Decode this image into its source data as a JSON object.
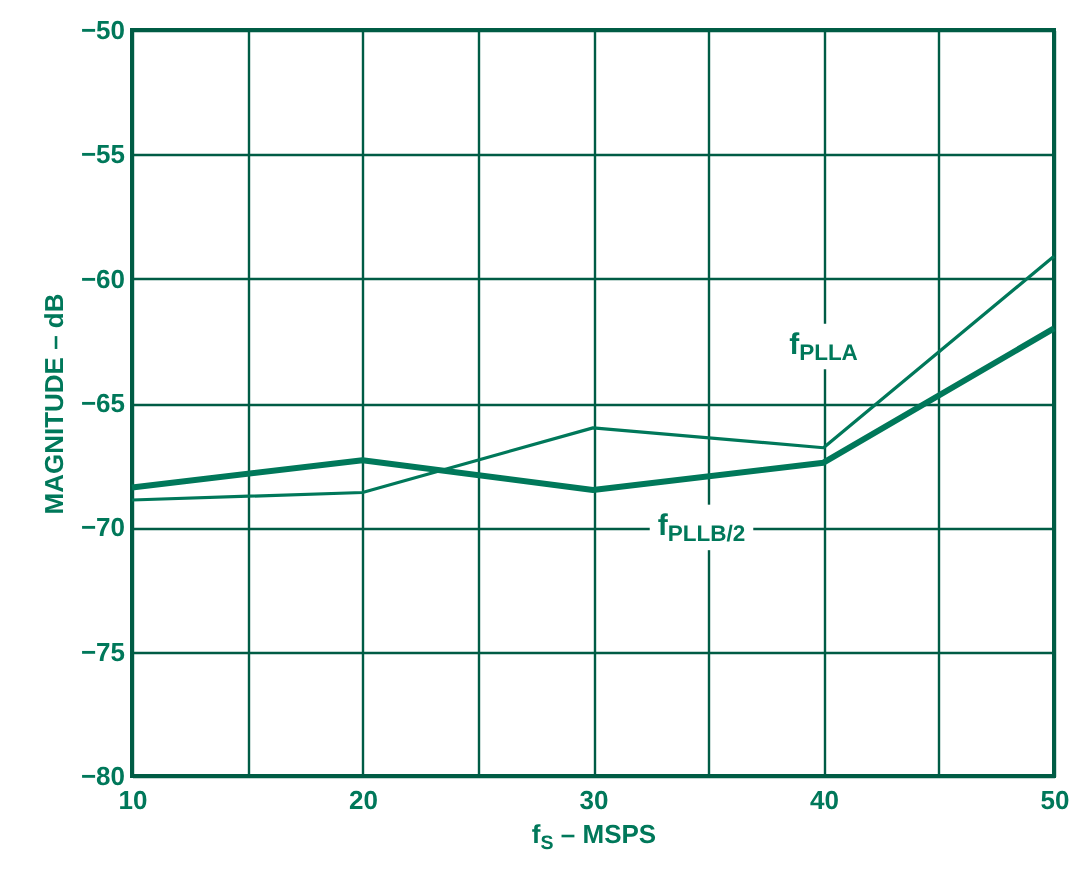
{
  "chart_data": {
    "type": "line",
    "xlabel": "f$_{S}$ – MSPS",
    "ylabel": "MAGNITUDE – dB",
    "x": [
      10,
      20,
      30,
      40,
      50
    ],
    "series": [
      {
        "name": "f$_{PLLA}$",
        "color": "#00785a",
        "values": [
          -68.9,
          -68.6,
          -66.0,
          -66.8,
          -59.1
        ]
      },
      {
        "name": "f$_{PLLB/2}$",
        "color": "#00785a",
        "values": [
          -68.4,
          -67.3,
          -68.5,
          -67.4,
          -62.0
        ]
      }
    ],
    "xlim": [
      10,
      50
    ],
    "ylim": [
      -80,
      -50
    ],
    "xticks": [
      10,
      {
        "value": 15,
        "label": null
      },
      20,
      {
        "value": 25,
        "label": null
      },
      30,
      {
        "value": 35,
        "label": null
      },
      40,
      {
        "value": 45,
        "label": null
      },
      50
    ],
    "yticks": [
      {
        "value": -80,
        "label": "−80"
      },
      {
        "value": -75,
        "label": "−75"
      },
      {
        "value": -70,
        "label": "−70"
      },
      {
        "value": -65,
        "label": "−65"
      },
      {
        "value": -60,
        "label": "−60"
      },
      {
        "value": -55,
        "label": "−55"
      },
      {
        "value": -50,
        "label": "−50"
      }
    ],
    "grid": true,
    "marker": "none",
    "line_style": "solid"
  }
}
